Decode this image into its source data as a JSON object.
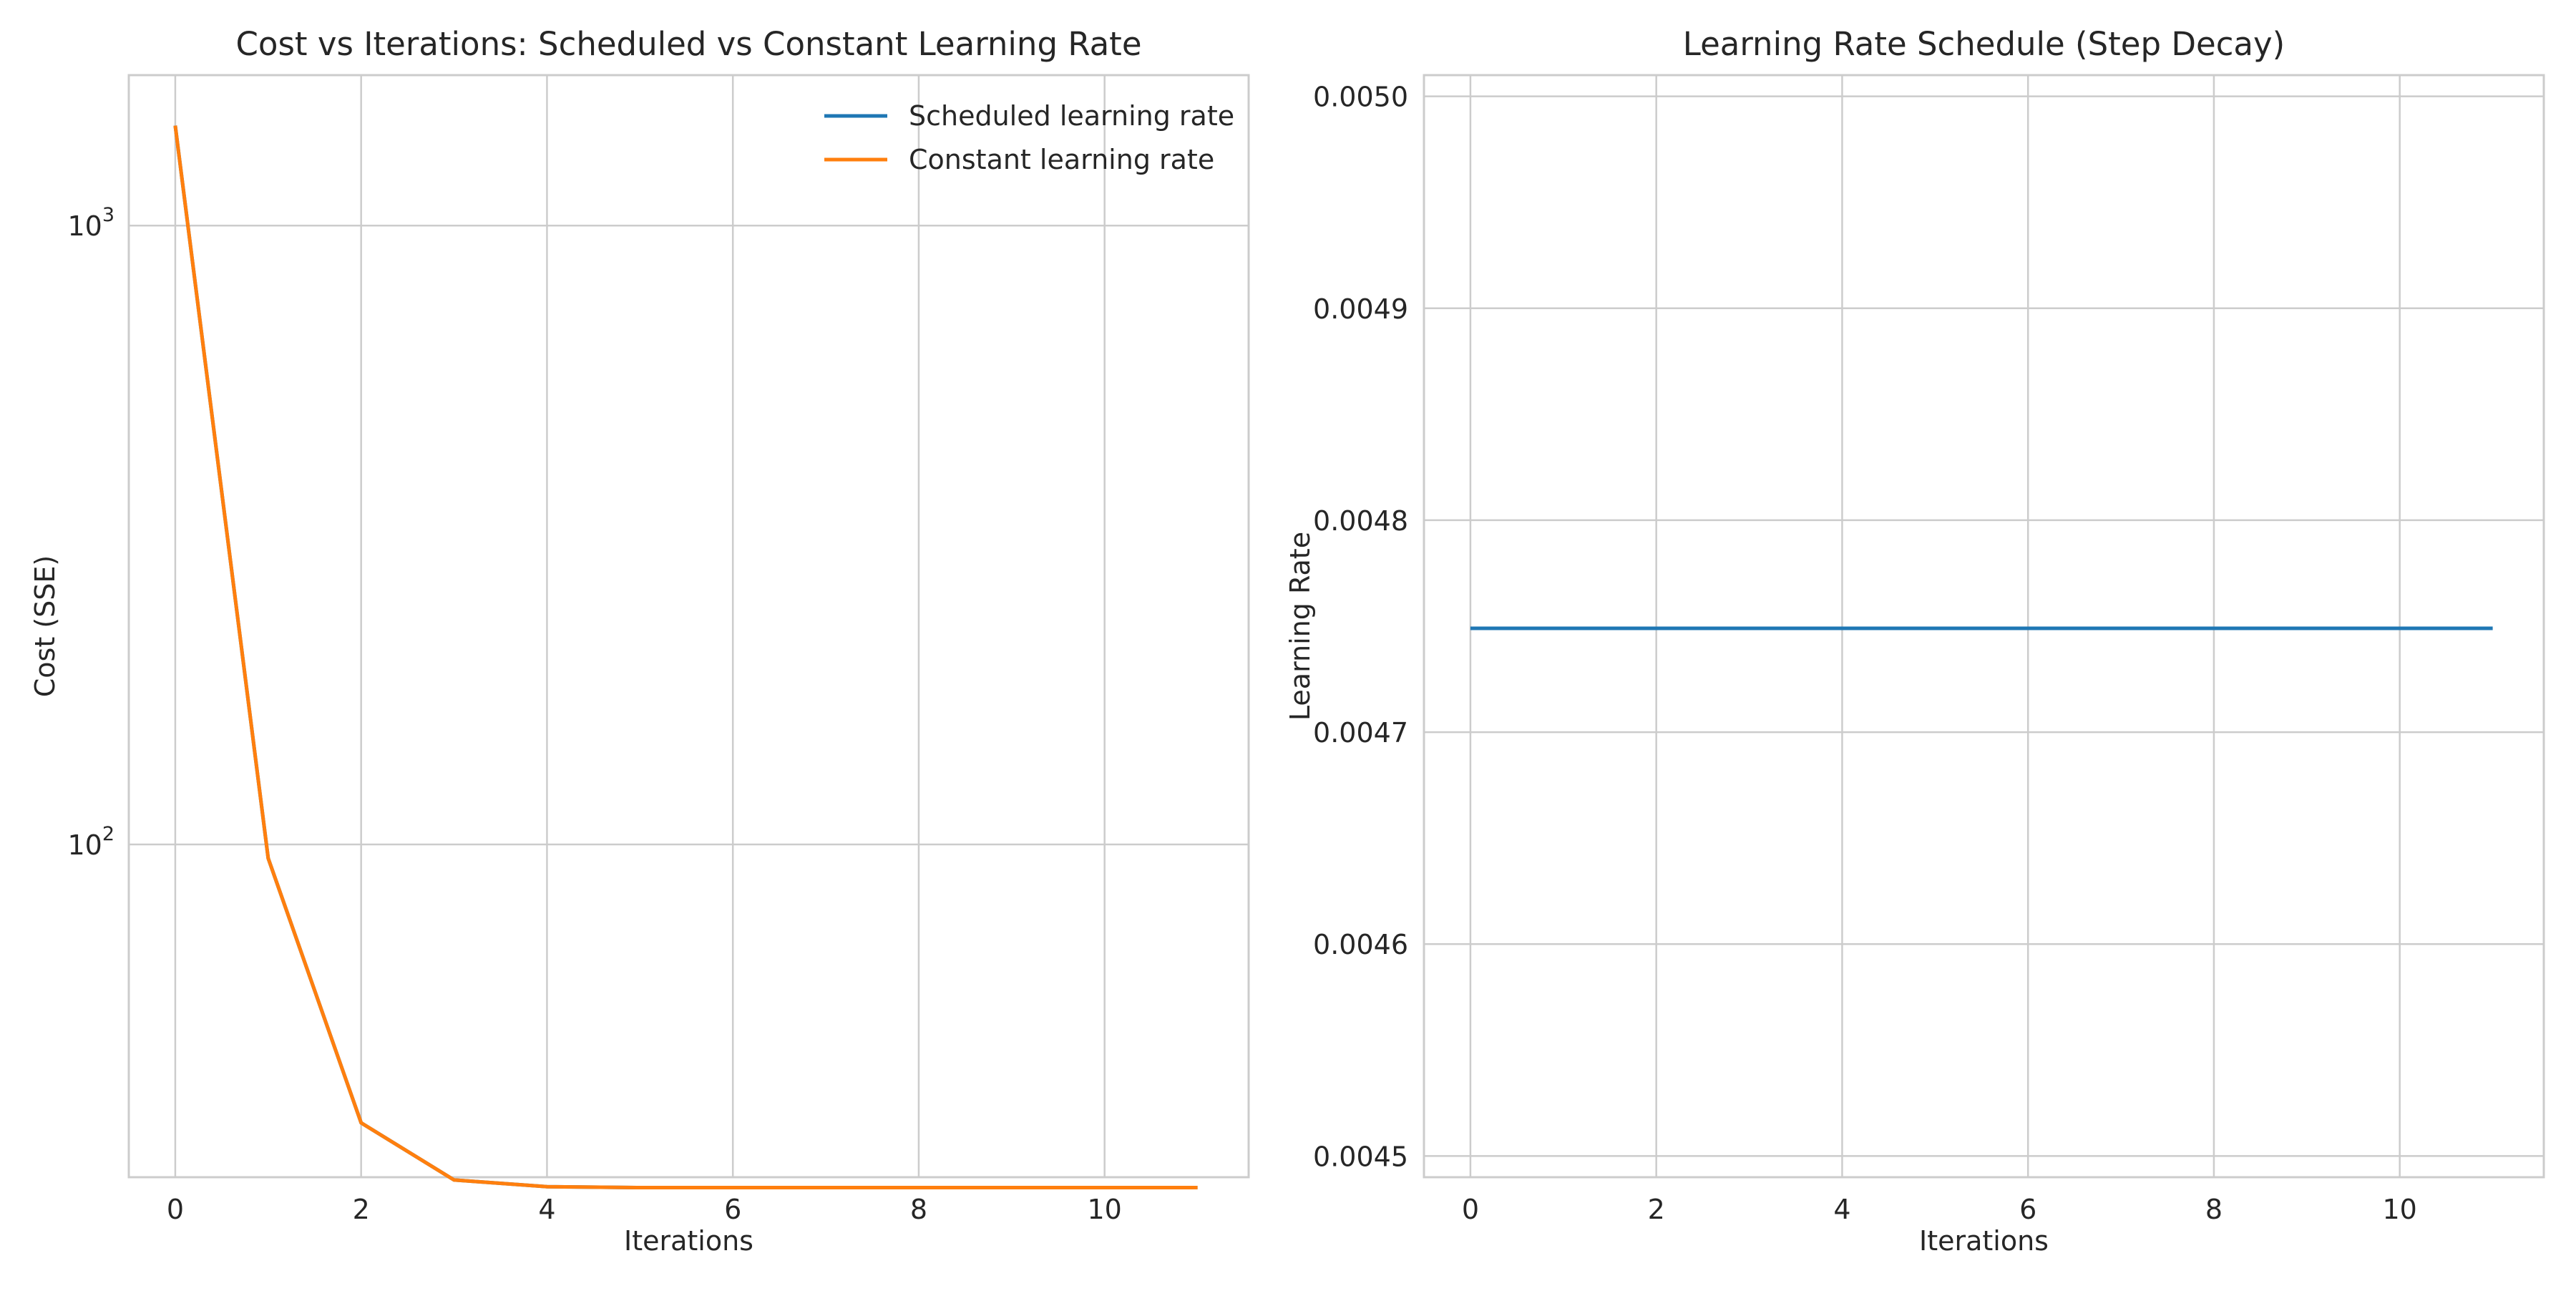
{
  "chart_data": [
    {
      "type": "line",
      "title": "Cost vs Iterations: Scheduled vs Constant Learning Rate",
      "xlabel": "Iterations",
      "ylabel": "Cost (SSE)",
      "yscale": "log",
      "xlim": [
        -0.5,
        11.55
      ],
      "ylim": [
        29,
        1750
      ],
      "grid": true,
      "legend_position": "top-right",
      "x_ticks": [
        0,
        2,
        4,
        6,
        8,
        10
      ],
      "y_ticks": [
        {
          "value": 100,
          "base": "10",
          "exp": "2"
        },
        {
          "value": 1000,
          "base": "10",
          "exp": "3"
        }
      ],
      "series": [
        {
          "name": "Scheduled learning rate",
          "color": "#1f77b4",
          "x": [
            0,
            1,
            2,
            3,
            4,
            5,
            6,
            7,
            8,
            9,
            10,
            11
          ],
          "y": [
            1450,
            95,
            35.5,
            28.7,
            28.0,
            27.9,
            27.9,
            27.9,
            27.9,
            27.9,
            27.9,
            27.9
          ]
        },
        {
          "name": "Constant learning rate",
          "color": "#ff7f0e",
          "x": [
            0,
            1,
            2,
            3,
            4,
            5,
            6,
            7,
            8,
            9,
            10,
            11
          ],
          "y": [
            1450,
            95,
            35.5,
            28.7,
            28.0,
            27.9,
            27.9,
            27.9,
            27.9,
            27.9,
            27.9,
            27.9
          ]
        }
      ]
    },
    {
      "type": "line",
      "title": "Learning Rate Schedule (Step Decay)",
      "xlabel": "Iterations",
      "ylabel": "Learning Rate",
      "xlim": [
        -0.5,
        11.55
      ],
      "ylim": [
        0.00449,
        0.00501
      ],
      "grid": true,
      "x_ticks": [
        0,
        2,
        4,
        6,
        8,
        10
      ],
      "y_ticks": [
        0.0045,
        0.0046,
        0.0047,
        0.0048,
        0.0049,
        0.005
      ],
      "y_tick_labels": [
        "0.0045",
        "0.0046",
        "0.0047",
        "0.0048",
        "0.0049",
        "0.0050"
      ],
      "series": [
        {
          "color": "#1f77b4",
          "x": [
            0,
            1,
            2,
            3,
            4,
            5,
            6,
            7,
            8,
            9,
            10,
            11
          ],
          "y": [
            0.004749,
            0.004749,
            0.004749,
            0.004749,
            0.004749,
            0.004749,
            0.004749,
            0.004749,
            0.004749,
            0.004749,
            0.004749,
            0.004749
          ]
        }
      ]
    }
  ]
}
